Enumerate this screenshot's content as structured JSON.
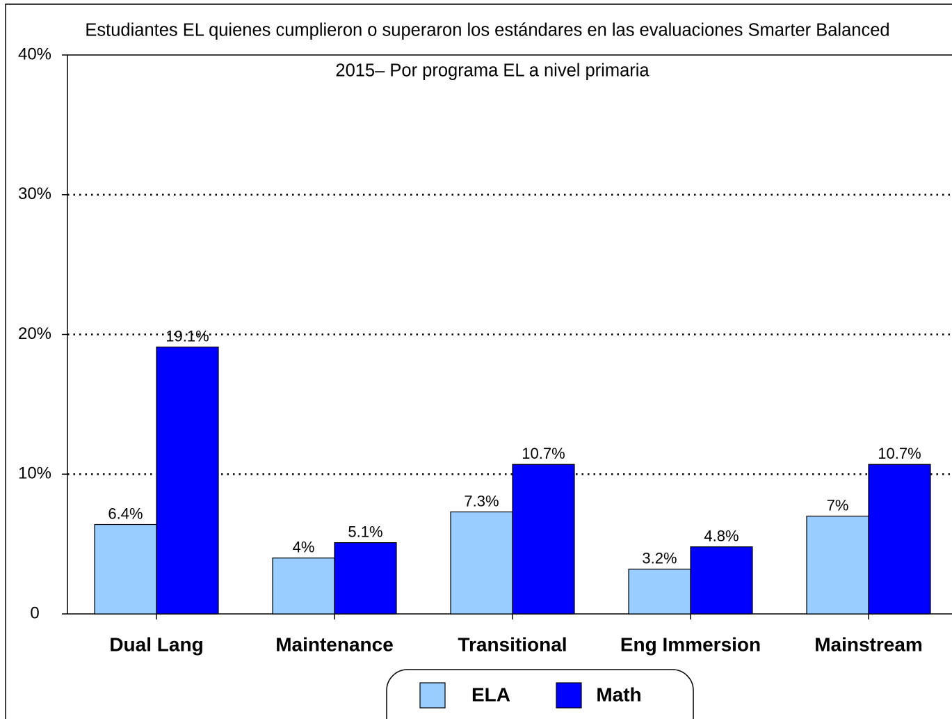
{
  "chart_data": {
    "type": "bar",
    "title": [
      "Estudiantes EL quienes cumplieron o superaron los estándares en las evaluaciones Smarter Balanced",
      "2015– Por programa EL a nivel primaria"
    ],
    "categories": [
      "Dual Lang",
      "Maintenance",
      "Transitional",
      "Eng Immersion",
      "Mainstream"
    ],
    "series": [
      {
        "name": "ELA",
        "color": "#99ccff",
        "values": [
          6.4,
          4,
          7.3,
          3.2,
          7
        ],
        "value_labels": [
          "6.4%",
          "4%",
          "7.3%",
          "3.2%",
          "7%"
        ]
      },
      {
        "name": "Math",
        "color": "#0000ff",
        "values": [
          19.1,
          5.1,
          10.7,
          4.8,
          10.7
        ],
        "value_labels": [
          "19.1%",
          "5.1%",
          "10.7%",
          "4.8%",
          "10.7%"
        ]
      }
    ],
    "ylim": [
      0,
      40
    ],
    "yticks": [
      0,
      {
        "value": 10,
        "label": "10%"
      },
      {
        "value": 20,
        "label": "20%"
      },
      {
        "value": 30,
        "label": "30%"
      },
      {
        "value": 40,
        "label": "40%"
      }
    ],
    "grid": true,
    "legend": "bottom"
  }
}
